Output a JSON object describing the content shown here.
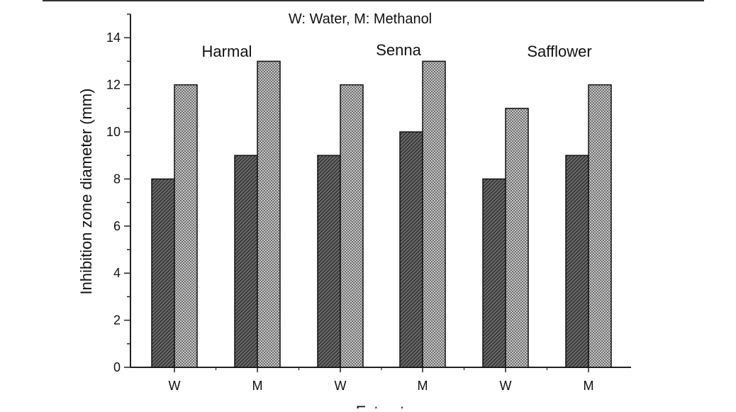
{
  "chart_data": {
    "type": "bar",
    "annotation": "W: Water, M: Methanol",
    "xlabel": "Extract",
    "ylabel": "Inhibition zone diameter (mm)",
    "ylim": [
      0,
      15
    ],
    "yticks": [
      0,
      2,
      4,
      6,
      8,
      10,
      12,
      14
    ],
    "categories": [
      "W",
      "M",
      "W",
      "M",
      "W",
      "M"
    ],
    "groups": [
      "Harmal",
      "Senna",
      "Safflower"
    ],
    "series": [
      {
        "values": [
          8,
          9,
          9,
          10,
          8,
          9
        ],
        "pattern": "diagonal-hatch",
        "color": "#555555"
      },
      {
        "values": [
          12,
          13,
          12,
          13,
          11,
          12
        ],
        "pattern": "checker",
        "color": "#9a9a9a"
      }
    ],
    "grid": false,
    "legend": "none"
  }
}
